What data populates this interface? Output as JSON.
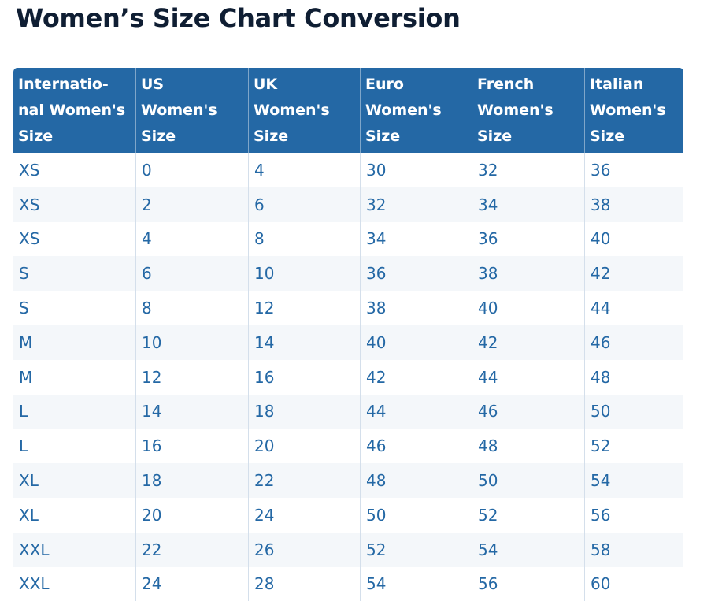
{
  "page": {
    "title": "Women’s Size Chart Conversion"
  },
  "table": {
    "headers": [
      "Internatio- nal Women's Size",
      "US Women's Size",
      "UK Women's Size",
      "Euro Women's Size",
      "French Women's Size",
      "Italian Women's Size"
    ],
    "rows": [
      [
        "XS",
        "0",
        "4",
        "30",
        "32",
        "36"
      ],
      [
        "XS",
        "2",
        "6",
        "32",
        "34",
        "38"
      ],
      [
        "XS",
        "4",
        "8",
        "34",
        "36",
        "40"
      ],
      [
        "S",
        "6",
        "10",
        "36",
        "38",
        "42"
      ],
      [
        "S",
        "8",
        "12",
        "38",
        "40",
        "44"
      ],
      [
        "M",
        "10",
        "14",
        "40",
        "42",
        "46"
      ],
      [
        "M",
        "12",
        "16",
        "42",
        "44",
        "48"
      ],
      [
        "L",
        "14",
        "18",
        "44",
        "46",
        "50"
      ],
      [
        "L",
        "16",
        "20",
        "46",
        "48",
        "52"
      ],
      [
        "XL",
        "18",
        "22",
        "48",
        "50",
        "54"
      ],
      [
        "XL",
        "20",
        "24",
        "50",
        "52",
        "56"
      ],
      [
        "XXL",
        "22",
        "26",
        "52",
        "54",
        "58"
      ],
      [
        "XXL",
        "24",
        "28",
        "54",
        "56",
        "60"
      ]
    ]
  },
  "colors": {
    "header_background": "#2468a5",
    "header_text": "#ffffff",
    "cell_text": "#2468a5",
    "title_text": "#0f1e33",
    "row_stripe": "#f4f7fa"
  }
}
